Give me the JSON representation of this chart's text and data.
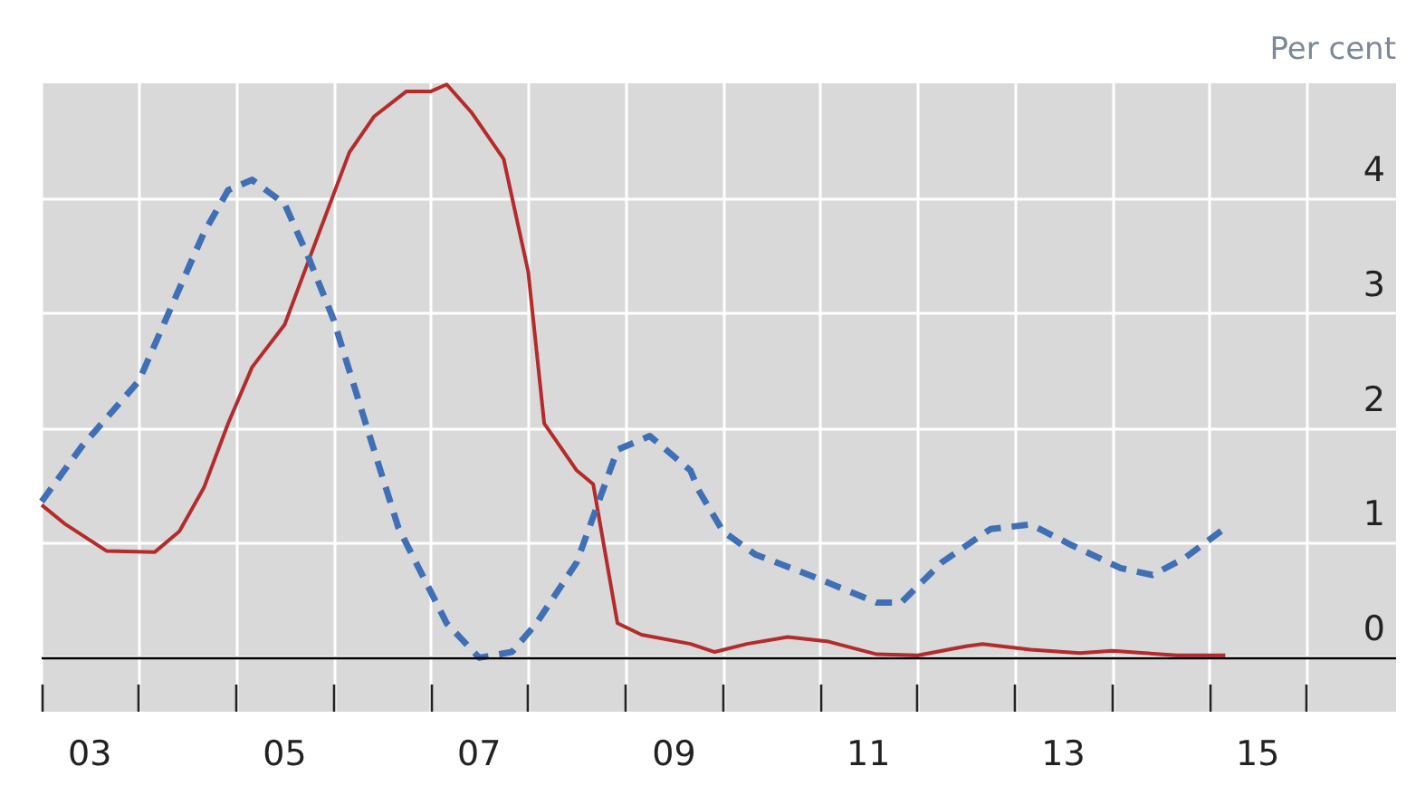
{
  "chart_data": {
    "type": "line",
    "ylabel": "Per cent",
    "xlim": [
      "2003-01",
      "2016-12"
    ],
    "ylim": [
      -0.47,
      5
    ],
    "yticks": [
      0,
      1,
      2,
      3,
      4
    ],
    "xticks": [
      {
        "value": "2003-01",
        "label": null
      },
      {
        "value": "2004-01",
        "label": null
      },
      {
        "value": "2005-01",
        "label": null
      },
      {
        "value": "2006-01",
        "label": null
      },
      {
        "value": "2007-01",
        "label": null
      },
      {
        "value": "2008-01",
        "label": null
      },
      {
        "value": "2009-01",
        "label": null
      },
      {
        "value": "2010-01",
        "label": null
      },
      {
        "value": "2011-01",
        "label": null
      },
      {
        "value": "2012-01",
        "label": null
      },
      {
        "value": "2013-01",
        "label": null
      },
      {
        "value": "2014-01",
        "label": null
      },
      {
        "value": "2015-01",
        "label": null
      },
      {
        "value": "2016-01",
        "label": null
      },
      {
        "value": "2003-07",
        "label": "03"
      },
      {
        "value": "2005-07",
        "label": "05"
      },
      {
        "value": "2007-07",
        "label": "07"
      },
      {
        "value": "2009-07",
        "label": "09"
      },
      {
        "value": "2011-07",
        "label": "11"
      },
      {
        "value": "2013-07",
        "label": "13"
      },
      {
        "value": "2015-07",
        "label": "15"
      }
    ],
    "grid": true,
    "marker": "none",
    "ref_lines": [
      {
        "axis": "y",
        "value": 0,
        "label": null,
        "color": "#000000"
      }
    ],
    "series": [
      {
        "color": "#b52b2b",
        "line_style": "solid",
        "x": [
          "2003-01",
          "2003-04",
          "2003-09",
          "2004-03",
          "2004-06",
          "2004-09",
          "2004-12",
          "2005-03",
          "2005-07",
          "2005-10",
          "2006-03",
          "2006-06",
          "2006-10",
          "2007-01",
          "2007-03",
          "2007-06",
          "2007-10",
          "2008-01",
          "2008-03",
          "2008-07",
          "2008-09",
          "2008-12",
          "2009-03",
          "2009-09",
          "2009-12",
          "2010-04",
          "2010-09",
          "2011-02",
          "2011-08",
          "2012-01",
          "2012-07",
          "2012-09",
          "2013-03",
          "2013-09",
          "2014-01",
          "2014-09",
          "2015-03"
        ],
        "values": [
          1.33,
          1.16,
          0.93,
          0.92,
          1.1,
          1.48,
          2.04,
          2.53,
          2.9,
          3.47,
          4.4,
          4.71,
          4.93,
          4.93,
          4.99,
          4.75,
          4.34,
          3.36,
          2.04,
          1.63,
          1.51,
          0.3,
          0.2,
          0.12,
          0.05,
          0.12,
          0.18,
          0.14,
          0.03,
          0.02,
          0.1,
          0.12,
          0.07,
          0.04,
          0.06,
          0.02,
          0.02
        ]
      },
      {
        "color": "#3f6fb5",
        "line_style": "dashed",
        "x": [
          "2003-01",
          "2003-06",
          "2004-01",
          "2004-05",
          "2004-09",
          "2004-12",
          "2005-03",
          "2005-07",
          "2005-10",
          "2006-01",
          "2006-05",
          "2006-09",
          "2007-03",
          "2007-07",
          "2007-11",
          "2008-02",
          "2008-07",
          "2008-12",
          "2009-04",
          "2009-09",
          "2009-10",
          "2010-01",
          "2010-05",
          "2010-12",
          "2011-08",
          "2011-11",
          "2012-04",
          "2012-10",
          "2013-03",
          "2013-08",
          "2014-02",
          "2014-06",
          "2014-10",
          "2015-03"
        ],
        "values": [
          1.36,
          1.84,
          2.41,
          3.05,
          3.7,
          4.07,
          4.16,
          3.95,
          3.47,
          2.94,
          2.04,
          1.13,
          0.3,
          0.0,
          0.05,
          0.3,
          0.83,
          1.81,
          1.93,
          1.63,
          1.46,
          1.1,
          0.9,
          0.71,
          0.48,
          0.48,
          0.83,
          1.12,
          1.16,
          0.98,
          0.78,
          0.72,
          0.87,
          1.13
        ]
      }
    ]
  }
}
